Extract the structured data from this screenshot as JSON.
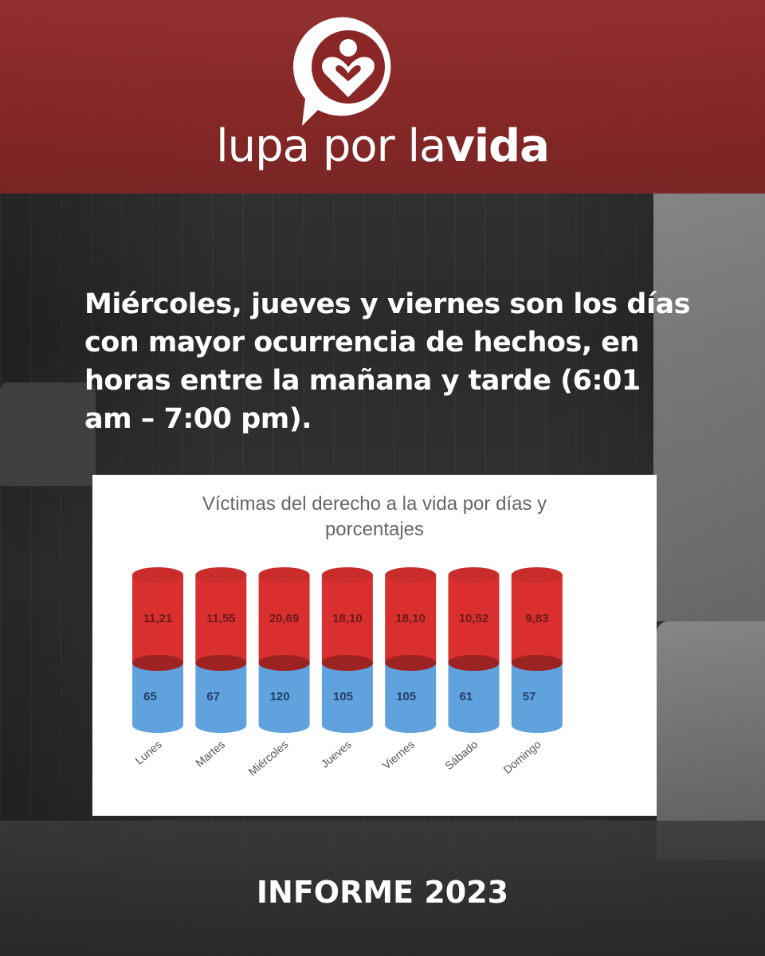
{
  "brand": {
    "part1": "lupa",
    "part2": "por la",
    "part3": "vida"
  },
  "headline": "Miércoles, jueves y viernes son los días con mayor ocurrencia de hechos, en horas entre la mañana y tarde (6:01 am – 7:00 pm).",
  "footer": "INFORME 2023",
  "colors": {
    "brand_red": "#8b2626",
    "bar_red": "#d9302f",
    "bar_blue": "#5fa2dd",
    "white": "#ffffff"
  },
  "chart_data": {
    "type": "bar",
    "title": "Víctimas del derecho a la vida por días y porcentajes",
    "title_lines": [
      "Víctimas del derecho a la vida por días y",
      "porcentajes"
    ],
    "categories": [
      "Lunes",
      "Martes",
      "Miércoles",
      "Jueves",
      "Viernes",
      "Sábado",
      "Domingo"
    ],
    "series": [
      {
        "values": [
          65,
          67,
          120,
          105,
          105,
          61,
          57
        ],
        "labels": [
          "65",
          "67",
          "120",
          "105",
          "105",
          "61",
          "57"
        ],
        "color": "#5fa2dd"
      },
      {
        "values": [
          11.21,
          11.55,
          20.69,
          18.1,
          18.1,
          10.52,
          9.83
        ],
        "labels": [
          "11,21",
          "11,55",
          "20,69",
          "18,10",
          "18,10",
          "10,52",
          "9,83"
        ],
        "color": "#d9302f"
      }
    ],
    "stacked": true,
    "bar_shape": "cylinder",
    "legend": "none",
    "grid": false
  }
}
